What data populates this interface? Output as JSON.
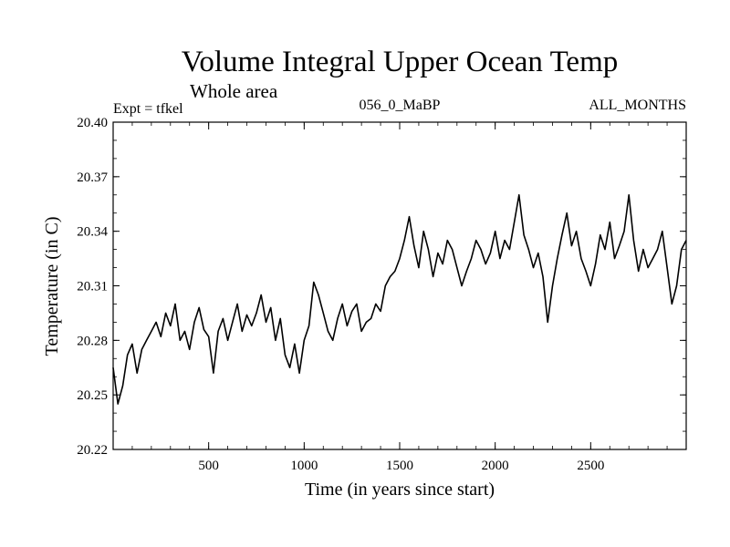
{
  "chart_data": {
    "type": "line",
    "title": "Volume Integral Upper Ocean Temp",
    "subtitle": "Whole area",
    "experiment_label": "Expt = tfkel",
    "period_label": "056_0_MaBP",
    "months_label": "ALL_MONTHS",
    "xlabel": "Time (in years since start)",
    "ylabel": "Temperature (in C)",
    "xlim": [
      0,
      3000
    ],
    "ylim": [
      20.22,
      20.4
    ],
    "xticks": [
      500,
      1000,
      1500,
      2000,
      2500
    ],
    "xtick_labels": [
      "500",
      "1000",
      "1500",
      "2000",
      "2500"
    ],
    "yticks": [
      20.22,
      20.25,
      20.28,
      20.31,
      20.34,
      20.37,
      20.4
    ],
    "ytick_labels": [
      "20.22",
      "20.25",
      "20.28",
      "20.31",
      "20.34",
      "20.37",
      "20.40"
    ],
    "grid": false,
    "series": [
      {
        "color": "#000000",
        "x": [
          0,
          25,
          50,
          75,
          100,
          125,
          150,
          175,
          200,
          225,
          250,
          275,
          300,
          325,
          350,
          375,
          400,
          425,
          450,
          475,
          500,
          525,
          550,
          575,
          600,
          625,
          650,
          675,
          700,
          725,
          750,
          775,
          800,
          825,
          850,
          875,
          900,
          925,
          950,
          975,
          1000,
          1025,
          1050,
          1075,
          1100,
          1125,
          1150,
          1175,
          1200,
          1225,
          1250,
          1275,
          1300,
          1325,
          1350,
          1375,
          1400,
          1425,
          1450,
          1475,
          1500,
          1525,
          1550,
          1575,
          1600,
          1625,
          1650,
          1675,
          1700,
          1725,
          1750,
          1775,
          1800,
          1825,
          1850,
          1875,
          1900,
          1925,
          1950,
          1975,
          2000,
          2025,
          2050,
          2075,
          2100,
          2125,
          2150,
          2175,
          2200,
          2225,
          2250,
          2275,
          2300,
          2325,
          2350,
          2375,
          2400,
          2425,
          2450,
          2475,
          2500,
          2525,
          2550,
          2575,
          2600,
          2625,
          2650,
          2675,
          2700,
          2725,
          2750,
          2775,
          2800,
          2825,
          2850,
          2875,
          2900,
          2925,
          2950,
          2975,
          3000
        ],
        "y": [
          20.265,
          20.245,
          20.255,
          20.272,
          20.278,
          20.262,
          20.275,
          20.28,
          20.285,
          20.29,
          20.282,
          20.295,
          20.288,
          20.3,
          20.28,
          20.285,
          20.275,
          20.29,
          20.298,
          20.286,
          20.282,
          20.262,
          20.285,
          20.292,
          20.28,
          20.29,
          20.3,
          20.285,
          20.294,
          20.288,
          20.295,
          20.305,
          20.29,
          20.298,
          20.28,
          20.292,
          20.272,
          20.265,
          20.278,
          20.262,
          20.28,
          20.288,
          20.312,
          20.305,
          20.295,
          20.285,
          20.28,
          20.292,
          20.3,
          20.288,
          20.296,
          20.3,
          20.285,
          20.29,
          20.292,
          20.3,
          20.296,
          20.31,
          20.315,
          20.318,
          20.325,
          20.335,
          20.348,
          20.332,
          20.32,
          20.34,
          20.33,
          20.315,
          20.328,
          20.322,
          20.335,
          20.33,
          20.32,
          20.31,
          20.318,
          20.325,
          20.335,
          20.33,
          20.322,
          20.328,
          20.34,
          20.325,
          20.335,
          20.33,
          20.345,
          20.36,
          20.338,
          20.33,
          20.32,
          20.328,
          20.315,
          20.29,
          20.31,
          20.325,
          20.338,
          20.35,
          20.332,
          20.34,
          20.325,
          20.318,
          20.31,
          20.322,
          20.338,
          20.33,
          20.345,
          20.325,
          20.332,
          20.34,
          20.36,
          20.335,
          20.318,
          20.33,
          20.32,
          20.325,
          20.33,
          20.34,
          20.32,
          20.3,
          20.31,
          20.33,
          20.335
        ]
      }
    ]
  }
}
